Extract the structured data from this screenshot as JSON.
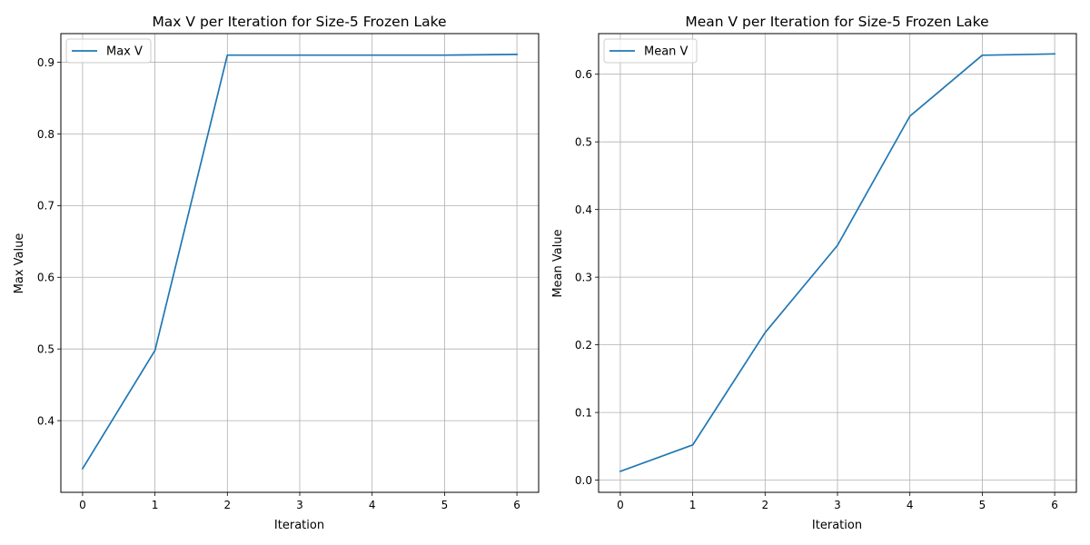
{
  "chart_data": [
    {
      "type": "line",
      "title": "Max V per Iteration for Size-5 Frozen Lake",
      "xlabel": "Iteration",
      "ylabel": "Max Value",
      "xlim": [
        -0.3,
        6.3
      ],
      "ylim": [
        0.3,
        0.94
      ],
      "x_ticks": [
        0,
        1,
        2,
        3,
        4,
        5,
        6
      ],
      "x_tick_labels": [
        "0",
        "1",
        "2",
        "3",
        "4",
        "5",
        "6"
      ],
      "y_ticks": [
        0.4,
        0.5,
        0.6,
        0.7,
        0.8,
        0.9
      ],
      "y_tick_labels": [
        "0.4",
        "0.5",
        "0.6",
        "0.7",
        "0.8",
        "0.9"
      ],
      "grid": true,
      "legend": "top-left",
      "series": [
        {
          "name": "Max V",
          "color": "#1f77b4",
          "x": [
            0,
            1,
            2,
            3,
            4,
            5,
            6
          ],
          "values": [
            0.333,
            0.498,
            0.91,
            0.91,
            0.91,
            0.91,
            0.911
          ]
        }
      ]
    },
    {
      "type": "line",
      "title": "Mean V per Iteration for Size-5 Frozen Lake",
      "xlabel": "Iteration",
      "ylabel": "Mean Value",
      "xlim": [
        -0.3,
        6.3
      ],
      "ylim": [
        -0.018,
        0.66
      ],
      "x_ticks": [
        0,
        1,
        2,
        3,
        4,
        5,
        6
      ],
      "x_tick_labels": [
        "0",
        "1",
        "2",
        "3",
        "4",
        "5",
        "6"
      ],
      "y_ticks": [
        0.0,
        0.1,
        0.2,
        0.3,
        0.4,
        0.5,
        0.6
      ],
      "y_tick_labels": [
        "0.0",
        "0.1",
        "0.2",
        "0.3",
        "0.4",
        "0.5",
        "0.6"
      ],
      "grid": true,
      "legend": "top-left",
      "series": [
        {
          "name": "Mean V",
          "color": "#1f77b4",
          "x": [
            0,
            1,
            2,
            3,
            4,
            5,
            6
          ],
          "values": [
            0.013,
            0.052,
            0.218,
            0.347,
            0.538,
            0.628,
            0.63
          ]
        }
      ]
    }
  ]
}
